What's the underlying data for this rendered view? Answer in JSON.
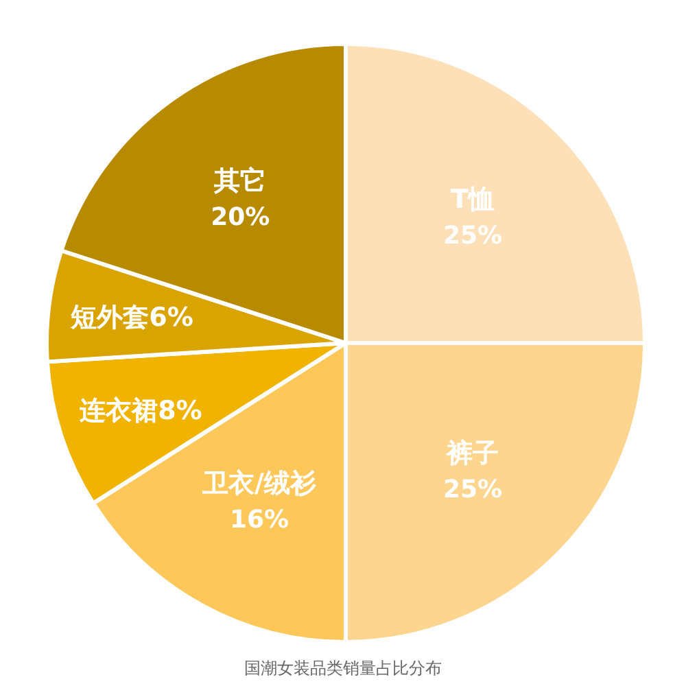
{
  "chart_data": {
    "type": "pie",
    "title": "国潮女装品类销量占比分布",
    "categories": [
      "T恤",
      "裤子",
      "卫衣/绒衫",
      "连衣裙",
      "短外套",
      "其它"
    ],
    "values": [
      25,
      25,
      16,
      8,
      6,
      20
    ],
    "value_labels": [
      "25%",
      "25%",
      "16%",
      "8%",
      "6%",
      "20%"
    ],
    "colors": [
      "#fde0b8",
      "#fdd58f",
      "#fdc75a",
      "#f0b400",
      "#d9a300",
      "#b88a00"
    ],
    "legend": false
  }
}
